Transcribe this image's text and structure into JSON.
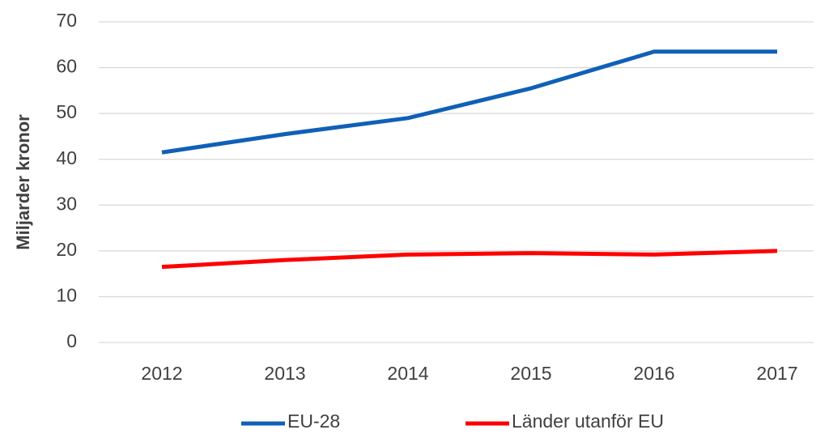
{
  "chart_data": {
    "type": "line",
    "y_label": "Miljarder kronor",
    "categories": [
      "2012",
      "2013",
      "2014",
      "2015",
      "2016",
      "2017"
    ],
    "series": [
      {
        "name": "EU-28",
        "color": "#1060b8",
        "values": [
          41.5,
          45.5,
          49,
          55.5,
          63.5,
          63.5
        ]
      },
      {
        "name": "Länder utanför EU",
        "color": "#ff0000",
        "values": [
          16.5,
          18,
          19.2,
          19.5,
          19.2,
          20
        ]
      }
    ],
    "ylim": [
      0,
      70
    ],
    "yticks": [
      0,
      10,
      20,
      30,
      40,
      50,
      60,
      70
    ],
    "grid": true,
    "legend": "bottom"
  }
}
